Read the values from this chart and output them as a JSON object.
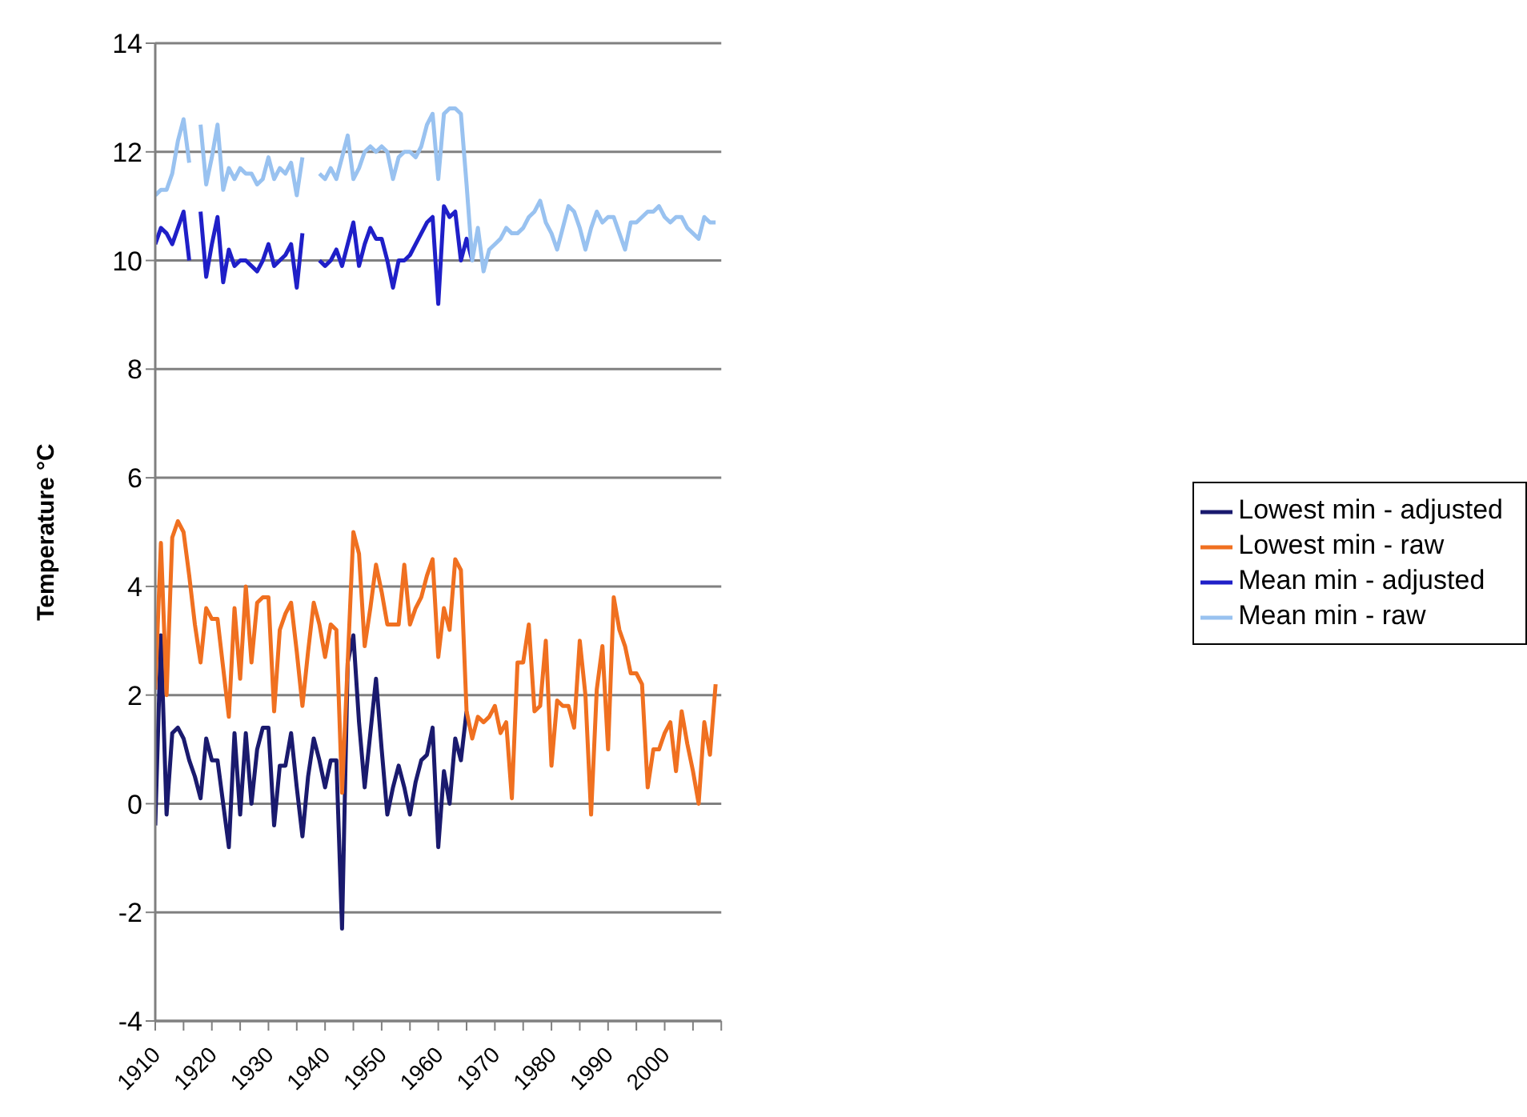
{
  "chart_data": {
    "type": "line",
    "ylabel": "Temperature °C",
    "x": [
      1910,
      1911,
      1912,
      1913,
      1914,
      1915,
      1916,
      1917,
      1918,
      1919,
      1920,
      1921,
      1922,
      1923,
      1924,
      1925,
      1926,
      1927,
      1928,
      1929,
      1930,
      1931,
      1932,
      1933,
      1934,
      1935,
      1936,
      1937,
      1938,
      1939,
      1940,
      1941,
      1942,
      1943,
      1944,
      1945,
      1946,
      1947,
      1948,
      1949,
      1950,
      1951,
      1952,
      1953,
      1954,
      1955,
      1956,
      1957,
      1958,
      1959,
      1960,
      1961,
      1962,
      1963,
      1964,
      1965,
      1966,
      1967,
      1968,
      1969,
      1970,
      1971,
      1972,
      1973,
      1974,
      1975,
      1976,
      1977,
      1978,
      1979,
      1980,
      1981,
      1982,
      1983,
      1984,
      1985,
      1986,
      1987,
      1988,
      1989,
      1990,
      1991,
      1992,
      1993,
      1994,
      1995,
      1996,
      1997,
      1998,
      1999,
      2000,
      2001,
      2002,
      2003,
      2004,
      2005,
      2006,
      2007,
      2008,
      2009
    ],
    "series": [
      {
        "name": "Mean min - adjusted",
        "color": "#1f1fc8",
        "values": [
          10.3,
          10.6,
          10.5,
          10.3,
          10.6,
          10.9,
          10.0,
          null,
          10.9,
          9.7,
          10.3,
          10.8,
          9.6,
          10.2,
          9.9,
          10.0,
          10.0,
          9.9,
          9.8,
          10.0,
          10.3,
          9.9,
          10.0,
          10.1,
          10.3,
          9.5,
          10.5,
          null,
          null,
          10.0,
          9.9,
          10.0,
          10.2,
          9.9,
          10.3,
          10.7,
          9.9,
          10.3,
          10.6,
          10.4,
          10.4,
          10.0,
          9.5,
          10.0,
          10.0,
          10.1,
          10.3,
          10.5,
          10.7,
          10.8,
          9.2,
          11.0,
          10.8,
          10.9,
          10.0,
          10.4,
          10.0,
          null,
          null,
          null,
          null,
          null,
          null,
          null,
          null,
          null,
          null,
          null,
          null,
          null,
          null,
          null,
          null,
          null,
          null,
          null,
          null,
          null,
          null,
          null,
          null,
          null,
          null,
          null,
          null,
          null,
          null,
          null,
          null,
          null,
          null,
          null,
          null,
          null,
          null,
          null,
          null,
          null,
          null,
          null
        ]
      },
      {
        "name": "Mean min - raw",
        "color": "#99c2f0",
        "values": [
          11.2,
          11.3,
          11.3,
          11.6,
          12.2,
          12.6,
          11.8,
          null,
          12.5,
          11.4,
          11.9,
          12.5,
          11.3,
          11.7,
          11.5,
          11.7,
          11.6,
          11.6,
          11.4,
          11.5,
          11.9,
          11.5,
          11.7,
          11.6,
          11.8,
          11.2,
          11.9,
          null,
          null,
          11.6,
          11.5,
          11.7,
          11.5,
          11.9,
          12.3,
          11.5,
          11.7,
          12.0,
          12.1,
          12.0,
          12.1,
          12.0,
          11.5,
          11.9,
          12.0,
          12.0,
          11.9,
          12.1,
          12.5,
          12.7,
          11.5,
          12.7,
          12.8,
          12.8,
          12.7,
          11.4,
          10.0,
          10.6,
          9.8,
          10.2,
          10.3,
          10.4,
          10.6,
          10.5,
          10.5,
          10.6,
          10.8,
          10.9,
          11.1,
          10.7,
          10.5,
          10.2,
          10.6,
          11.0,
          10.9,
          10.6,
          10.2,
          10.6,
          10.9,
          10.7,
          10.8,
          10.8,
          10.5,
          10.2,
          10.7,
          10.7,
          10.8,
          10.9,
          10.9,
          11.0,
          10.8,
          10.7,
          10.8,
          10.8,
          10.6,
          10.5,
          10.4,
          10.8,
          10.7,
          10.7
        ]
      },
      {
        "name": "Lowest min - adjusted",
        "color": "#1a1a6e",
        "values": [
          -0.4,
          3.1,
          -0.2,
          1.3,
          1.4,
          1.2,
          0.8,
          0.5,
          0.1,
          1.2,
          0.8,
          0.8,
          0.0,
          -0.8,
          1.3,
          -0.2,
          1.3,
          0.0,
          1.0,
          1.4,
          1.4,
          -0.4,
          0.7,
          0.7,
          1.3,
          0.3,
          -0.6,
          0.5,
          1.2,
          0.8,
          0.3,
          0.8,
          0.8,
          -2.3,
          2.6,
          3.1,
          1.5,
          0.3,
          1.3,
          2.3,
          1.0,
          -0.2,
          0.3,
          0.7,
          0.3,
          -0.2,
          0.4,
          0.8,
          0.9,
          1.4,
          -0.8,
          0.6,
          0.0,
          1.2,
          0.8,
          1.7,
          null,
          null,
          null,
          null,
          null,
          null,
          null,
          null,
          null,
          null,
          null,
          null,
          null,
          null,
          null,
          null,
          null,
          null,
          null,
          null,
          null,
          null,
          null,
          null,
          null,
          null,
          null,
          null,
          null,
          null,
          null,
          null,
          null,
          null,
          null,
          null,
          null,
          null,
          null,
          null,
          null,
          null,
          null,
          null
        ]
      },
      {
        "name": "Lowest min - raw",
        "color": "#f07020",
        "values": [
          2.1,
          4.8,
          2.0,
          4.9,
          5.2,
          5.0,
          4.2,
          3.3,
          2.6,
          3.6,
          3.4,
          3.4,
          2.5,
          1.6,
          3.6,
          2.3,
          4.0,
          2.6,
          3.7,
          3.8,
          3.8,
          1.7,
          3.2,
          3.5,
          3.7,
          2.8,
          1.8,
          2.8,
          3.7,
          3.3,
          2.7,
          3.3,
          3.2,
          0.2,
          2.6,
          5.0,
          4.6,
          2.9,
          3.6,
          4.4,
          3.9,
          3.3,
          3.3,
          3.3,
          4.4,
          3.3,
          3.6,
          3.8,
          4.2,
          4.5,
          2.7,
          3.6,
          3.2,
          4.5,
          4.3,
          1.7,
          1.2,
          1.6,
          1.5,
          1.6,
          1.8,
          1.3,
          1.5,
          0.1,
          2.6,
          2.6,
          3.3,
          1.7,
          1.8,
          3.0,
          0.7,
          1.9,
          1.8,
          1.8,
          1.4,
          3.0,
          2.0,
          -0.2,
          2.1,
          2.9,
          1.0,
          3.8,
          3.2,
          2.9,
          2.4,
          2.4,
          2.2,
          0.3,
          1.0,
          1.0,
          1.3,
          1.5,
          0.6,
          1.7,
          1.1,
          0.6,
          0.0,
          1.5,
          0.9,
          2.2
        ]
      }
    ],
    "xlim": [
      1910,
      2010
    ],
    "xticks": [
      1910,
      {
        "value": 1915,
        "label": null
      },
      1920,
      {
        "value": 1925,
        "label": null
      },
      1930,
      {
        "value": 1935,
        "label": null
      },
      1940,
      {
        "value": 1945,
        "label": null
      },
      1950,
      {
        "value": 1955,
        "label": null
      },
      1960,
      {
        "value": 1965,
        "label": null
      },
      1970,
      {
        "value": 1975,
        "label": null
      },
      1980,
      {
        "value": 1985,
        "label": null
      },
      1990,
      {
        "value": 1995,
        "label": null
      },
      2000,
      {
        "value": 2005,
        "label": null
      },
      {
        "value": 2010,
        "label": null
      }
    ],
    "ylim": [
      -4,
      14
    ],
    "yticks": [
      -4,
      -2,
      0,
      2,
      4,
      6,
      8,
      10,
      12,
      14
    ],
    "grid": "y",
    "legend": "right",
    "marker": "none",
    "line_style": "solid"
  }
}
